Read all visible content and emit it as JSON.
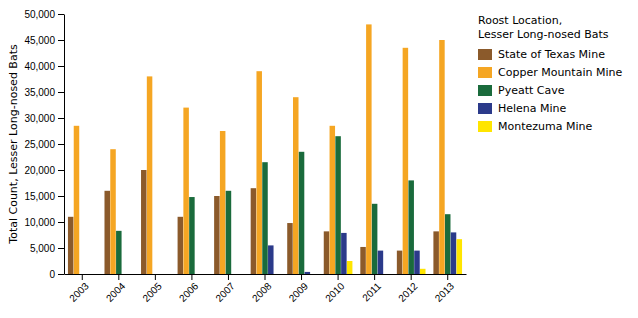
{
  "chart_data": {
    "type": "bar",
    "categories": [
      "2003",
      "2004",
      "2005",
      "2006",
      "2007",
      "2008",
      "2009",
      "2010",
      "2011",
      "2012",
      "2013"
    ],
    "series": [
      {
        "name": "State of Texas Mine",
        "color": "#8B5A2B",
        "values": [
          11000,
          16000,
          20000,
          11000,
          15000,
          16500,
          9800,
          8200,
          5200,
          4500,
          8200
        ]
      },
      {
        "name": "Copper Mountain Mine",
        "color": "#F5A623",
        "values": [
          28500,
          24000,
          38000,
          32000,
          27500,
          39000,
          34000,
          28500,
          48000,
          43500,
          45000
        ]
      },
      {
        "name": "Pyeatt Cave",
        "color": "#1A6B3C",
        "values": [
          0,
          8300,
          0,
          14800,
          16000,
          21500,
          23500,
          26500,
          13500,
          18000,
          11500
        ]
      },
      {
        "name": "Helena Mine",
        "color": "#2B3A8A",
        "values": [
          0,
          0,
          0,
          0,
          0,
          5500,
          400,
          7900,
          4500,
          4500,
          8000
        ]
      },
      {
        "name": "Montezuma Mine",
        "color": "#FFE500",
        "values": [
          0,
          0,
          0,
          0,
          0,
          0,
          0,
          2500,
          0,
          1000,
          6700
        ]
      }
    ],
    "ylabel": "Total Count, Lesser Long-nosed Bats",
    "legend_title": "Roost Location,\nLesser Long-nosed Bats",
    "legend": "right",
    "grid": false,
    "ylim": [
      0,
      50000
    ],
    "yticks": [
      0,
      {
        "value": 5000,
        "label": "5,000"
      },
      {
        "value": 10000,
        "label": "10,000"
      },
      {
        "value": 15000,
        "label": "15,000"
      },
      {
        "value": 20000,
        "label": "20,000"
      },
      {
        "value": 25000,
        "label": "25,000"
      },
      {
        "value": 30000,
        "label": "30,000"
      },
      {
        "value": 35000,
        "label": "35,000"
      },
      {
        "value": 40000,
        "label": "40,000"
      },
      {
        "value": 45000,
        "label": "45,000"
      },
      {
        "value": 50000,
        "label": "50,000"
      }
    ]
  }
}
